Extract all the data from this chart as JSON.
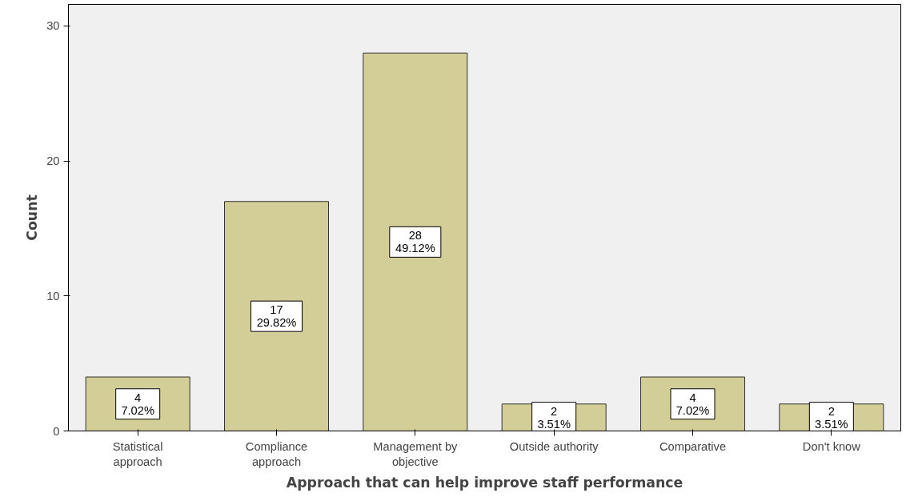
{
  "chart_data": {
    "type": "bar",
    "xlabel": "Approach that can help improve staff performance",
    "ylabel": "Count",
    "categories": [
      "Statistical\napproach",
      "Compliance\napproach",
      "Management by\nobjective",
      "Outside authority",
      "Comparative",
      "Don't know"
    ],
    "values": [
      4,
      17,
      28,
      2,
      4,
      2
    ],
    "value_labels": [
      "4\n7.02%",
      "17\n29.82%",
      "28\n49.12%",
      "2\n3.51%",
      "4\n7.02%",
      "2\n3.51%"
    ],
    "color": "#d3ce97",
    "ylim": [
      0,
      31.6
    ],
    "yticks": [
      0,
      10,
      20,
      30
    ],
    "grid": false
  }
}
